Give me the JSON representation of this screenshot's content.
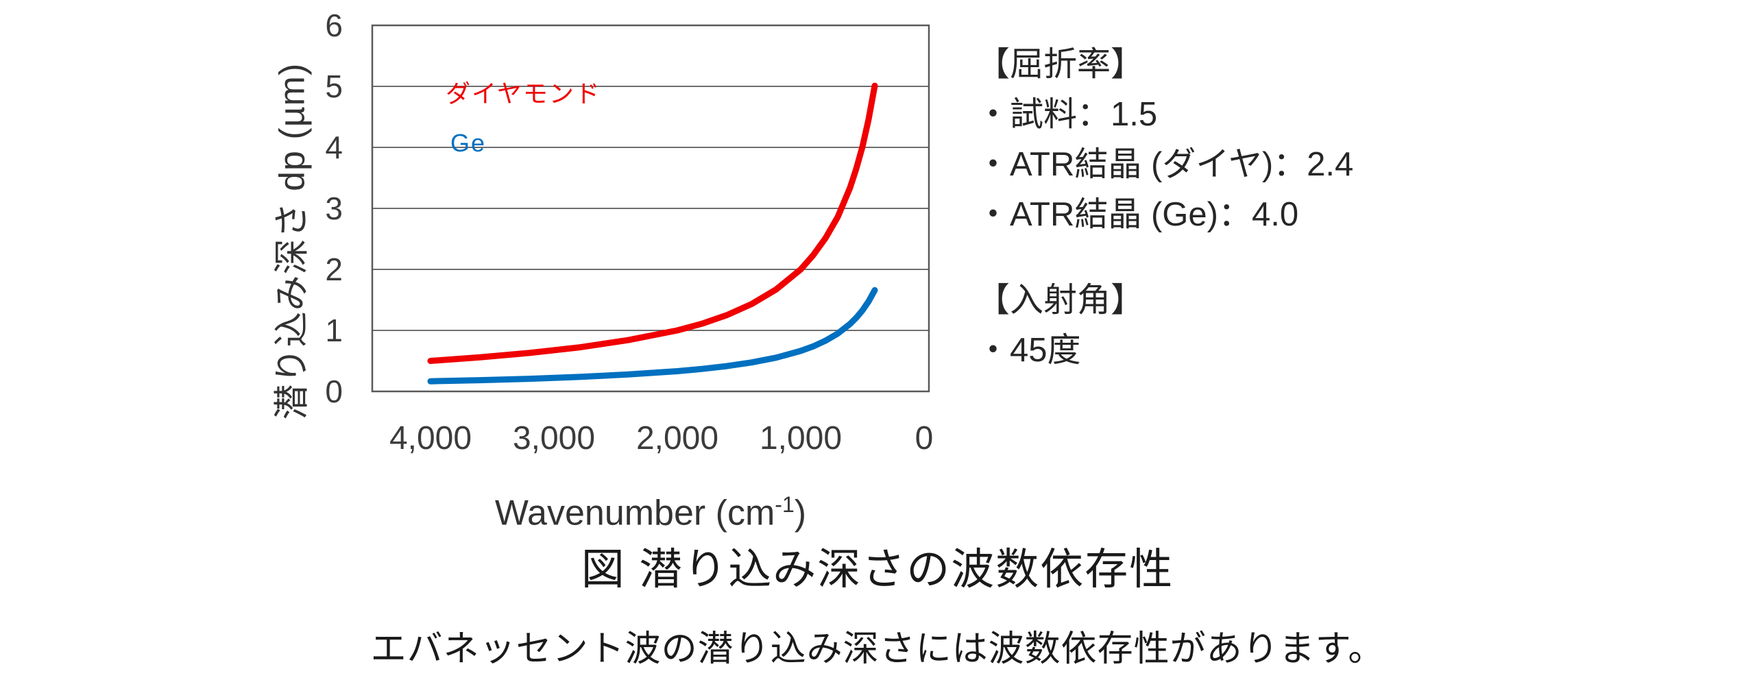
{
  "chart_data": {
    "type": "line",
    "title": "図 潜り込み深さの波数依存性",
    "subtitle": "エバネッセント波の潜り込み深さには波数依存性があります。",
    "ylabel": "潜り込み深さ dp (µm)",
    "xlabel_parts": {
      "pre": "Wavenumber (cm",
      "sup": "-1",
      "post": ")"
    },
    "x_axis": {
      "tick_labels": [
        "4,000",
        "3,000",
        "2,000",
        "1,000",
        "0"
      ],
      "tick_values": [
        4000,
        3000,
        2000,
        1000,
        0
      ],
      "reversed": true,
      "range_shown": [
        4500,
        0
      ]
    },
    "y_axis": {
      "tick_labels": [
        "6",
        "5",
        "4",
        "3",
        "2",
        "1",
        "0"
      ],
      "tick_values": [
        6,
        5,
        4,
        3,
        2,
        1,
        0
      ],
      "ylim": [
        0,
        6
      ],
      "grid_values": [
        1,
        2,
        3,
        4,
        5
      ]
    },
    "grid": "horizontal",
    "legend_position": "inside-top-left",
    "series": [
      {
        "name": "ダイヤモンド",
        "color": "#f00000",
        "x": [
          4000,
          3600,
          3200,
          2800,
          2400,
          2000,
          1800,
          1600,
          1400,
          1200,
          1000,
          900,
          800,
          700,
          600,
          550,
          500,
          450,
          400
        ],
        "dp": [
          0.5,
          0.56,
          0.63,
          0.72,
          0.84,
          1.0,
          1.11,
          1.25,
          1.43,
          1.67,
          2.0,
          2.23,
          2.51,
          2.86,
          3.34,
          3.65,
          4.01,
          4.46,
          5.01
        ]
      },
      {
        "name": "Ge",
        "color": "#0070c0",
        "x": [
          4000,
          3600,
          3200,
          2800,
          2400,
          2000,
          1800,
          1600,
          1400,
          1200,
          1000,
          900,
          800,
          700,
          600,
          550,
          500,
          450,
          400
        ],
        "dp": [
          0.166,
          0.184,
          0.207,
          0.237,
          0.277,
          0.332,
          0.369,
          0.415,
          0.474,
          0.553,
          0.664,
          0.737,
          0.83,
          0.948,
          1.106,
          1.207,
          1.327,
          1.475,
          1.659
        ]
      }
    ]
  },
  "annotations": {
    "refractive": {
      "heading": "【屈折率】",
      "items": [
        "・試料：1.5",
        "・ATR結晶 (ダイヤ)：2.4",
        "・ATR結晶 (Ge)：4.0"
      ]
    },
    "incident_angle": {
      "heading": "【入射角】",
      "items": [
        "・45度"
      ]
    }
  },
  "style": {
    "gridline_color": "#6e6e6e",
    "frame_color": "#595959"
  }
}
